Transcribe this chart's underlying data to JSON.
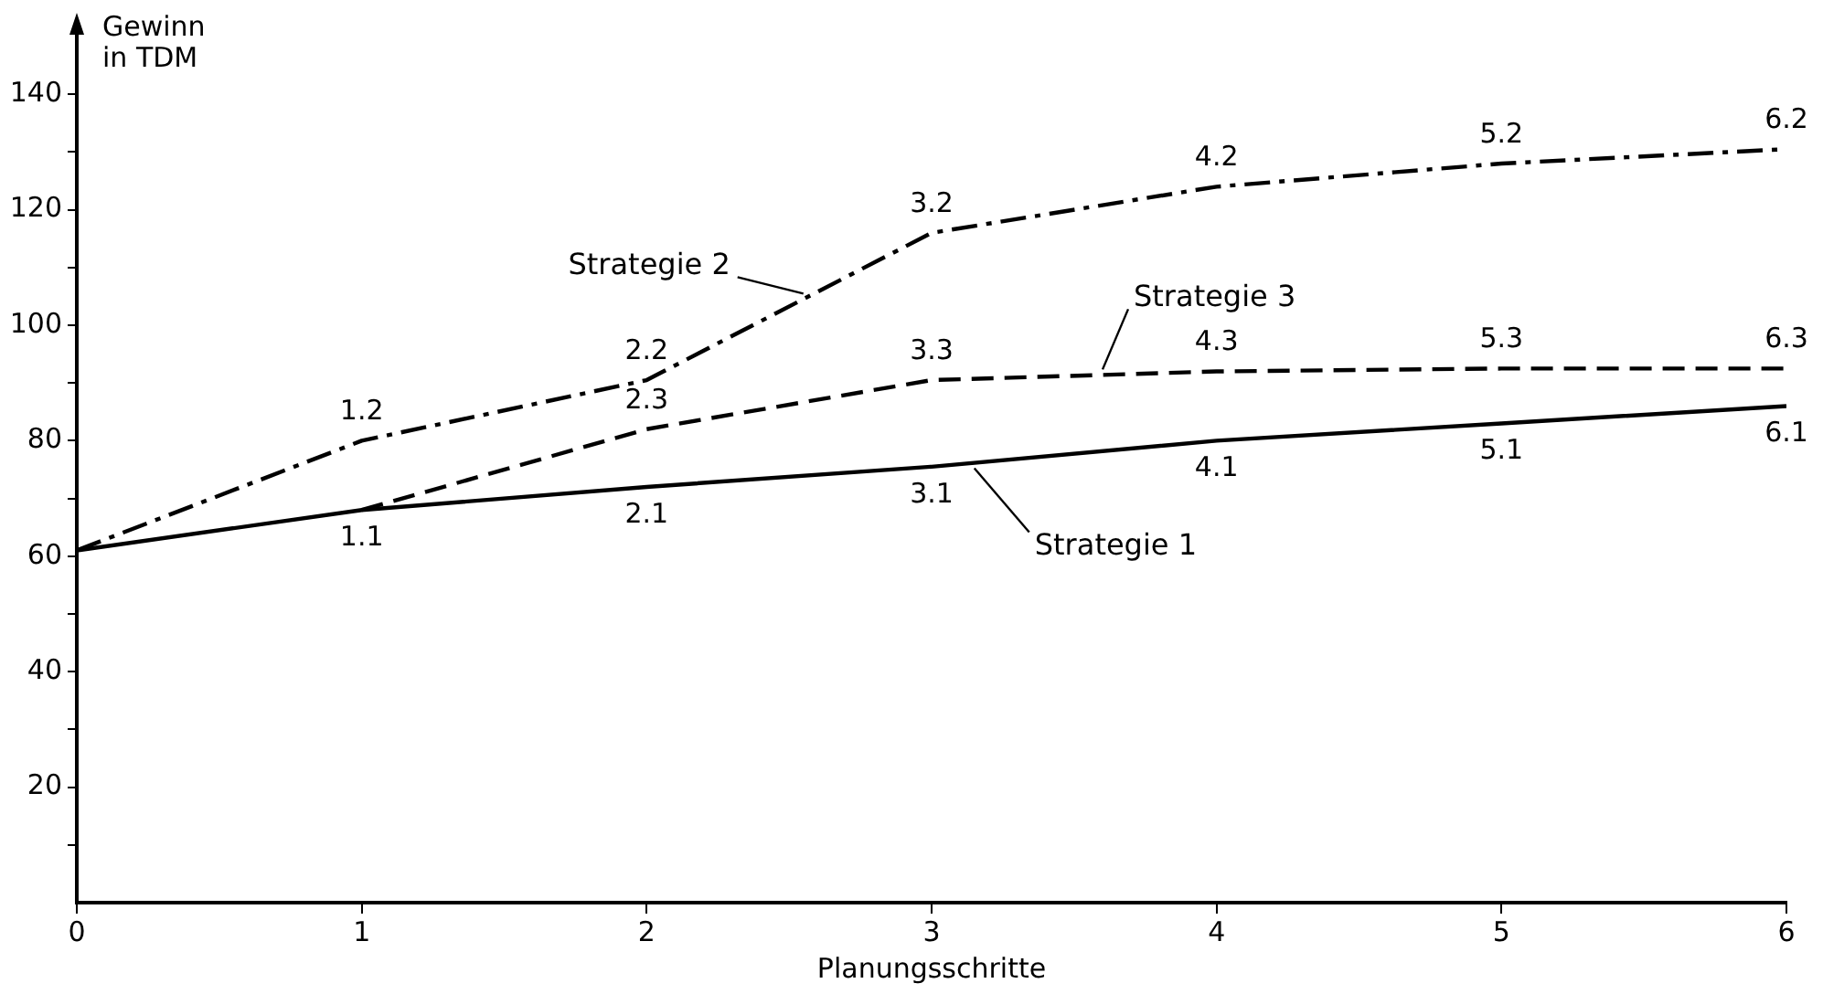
{
  "chart_data": {
    "type": "line",
    "xlabel": "Planungsschritte",
    "ylabel": "Gewinn\nin TDM",
    "x": [
      0,
      1,
      2,
      3,
      4,
      5,
      6
    ],
    "series": [
      {
        "name": "Strategie 1",
        "color": "#000000",
        "line_style": "solid",
        "values": [
          61,
          68,
          72,
          75.5,
          80,
          83,
          86
        ]
      },
      {
        "name": "Strategie 2",
        "color": "#000000",
        "line_style": "dashdot",
        "values": [
          61,
          80,
          90.5,
          116,
          124,
          128,
          130.5
        ]
      },
      {
        "name": "Strategie 3",
        "color": "#000000",
        "line_style": "dashed",
        "values": [
          null,
          68,
          82,
          90.5,
          92,
          92.5,
          92.5
        ]
      }
    ],
    "annotations": [
      {
        "text": "1.1",
        "x": 1,
        "y": 68
      },
      {
        "text": "2.1",
        "x": 2,
        "y": 72
      },
      {
        "text": "3.1",
        "x": 3,
        "y": 75.5
      },
      {
        "text": "4.1",
        "x": 4,
        "y": 80
      },
      {
        "text": "5.1",
        "x": 5,
        "y": 83
      },
      {
        "text": "6.1",
        "x": 6,
        "y": 86
      },
      {
        "text": "1.2",
        "x": 1,
        "y": 80
      },
      {
        "text": "2.2",
        "x": 2,
        "y": 90.5
      },
      {
        "text": "3.2",
        "x": 3,
        "y": 116
      },
      {
        "text": "4.2",
        "x": 4,
        "y": 124
      },
      {
        "text": "5.2",
        "x": 5,
        "y": 128
      },
      {
        "text": "6.2",
        "x": 6,
        "y": 130.5
      },
      {
        "text": "2.3",
        "x": 2,
        "y": 82
      },
      {
        "text": "3.3",
        "x": 3,
        "y": 90.5
      },
      {
        "text": "4.3",
        "x": 4,
        "y": 92
      },
      {
        "text": "5.3",
        "x": 5,
        "y": 92.5
      },
      {
        "text": "6.3",
        "x": 6,
        "y": 92.5
      }
    ],
    "xlim": [
      0,
      6
    ],
    "xticks": [
      0,
      1,
      2,
      3,
      4,
      5,
      6
    ],
    "ylim": [
      0,
      150
    ],
    "yticks": [
      {
        "value": 10,
        "label": null
      },
      20,
      {
        "value": 30,
        "label": null
      },
      40,
      {
        "value": 50,
        "label": null
      },
      60,
      {
        "value": 70,
        "label": null
      },
      80,
      {
        "value": 90,
        "label": null
      },
      100,
      {
        "value": 110,
        "label": null
      },
      120,
      {
        "value": 130,
        "label": null
      },
      140
    ],
    "grid": false,
    "legend": false,
    "marker": "none"
  }
}
